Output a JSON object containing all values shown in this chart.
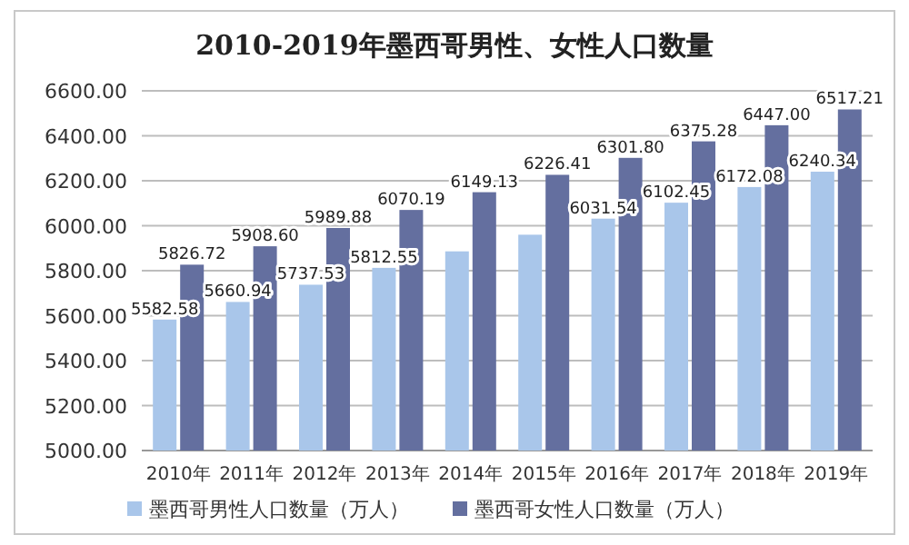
{
  "chart_data": {
    "type": "bar",
    "title": "2010-2019年墨西哥男性、女性人口数量",
    "categories": [
      "2010年",
      "2011年",
      "2012年",
      "2013年",
      "2014年",
      "2015年",
      "2016年",
      "2017年",
      "2018年",
      "2019年"
    ],
    "series": [
      {
        "name": "墨西哥男性人口数量（万人）",
        "color": "#a9c6ea",
        "values": [
          5582.58,
          5660.94,
          5737.53,
          5812.55,
          5886,
          5960,
          6031.54,
          6102.45,
          6172.08,
          6240.34
        ],
        "value_labels": [
          "5582.58",
          "5660.94",
          "5737.53",
          "5812.55",
          null,
          null,
          "6031.54",
          "6102.45",
          "6172.08",
          "6240.34"
        ]
      },
      {
        "name": "墨西哥女性人口数量（万人）",
        "color": "#646f9f",
        "values": [
          5826.72,
          5908.6,
          5989.88,
          6070.19,
          6149.13,
          6226.41,
          6301.8,
          6375.28,
          6447.0,
          6517.21
        ],
        "value_labels": [
          "5826.72",
          "5908.60",
          "5989.88",
          "6070.19",
          "6149.13",
          "6226.41",
          "6301.80",
          "6375.28",
          "6447.00",
          "6517.21"
        ]
      }
    ],
    "ylim": [
      5000,
      6600
    ],
    "yticks": [
      {
        "value": 5000,
        "label": "5000.00"
      },
      {
        "value": 5200,
        "label": "5200.00"
      },
      {
        "value": 5400,
        "label": "5400.00"
      },
      {
        "value": 5600,
        "label": "5600.00"
      },
      {
        "value": 5800,
        "label": "5800.00"
      },
      {
        "value": 6000,
        "label": "6000.00"
      },
      {
        "value": 6200,
        "label": "6200.00"
      },
      {
        "value": 6400,
        "label": "6400.00"
      },
      {
        "value": 6600,
        "label": "6600.00"
      }
    ],
    "grid": "y",
    "legend": "bottom"
  }
}
